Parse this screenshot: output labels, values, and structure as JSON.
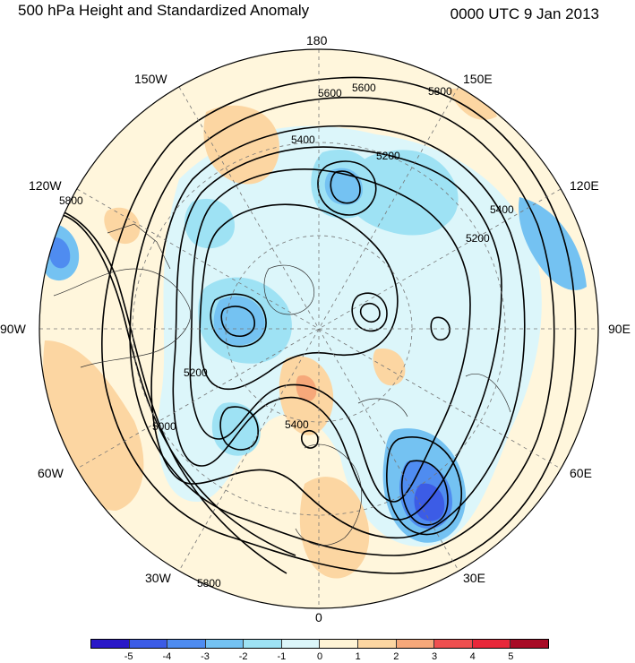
{
  "title": {
    "left": "500 hPa Height and Standardized Anomaly",
    "right": "0000 UTC 9 Jan 2013"
  },
  "longitude_labels": {
    "n180": "180",
    "w150": "150W",
    "e150": "150E",
    "w120": "120W",
    "e120": "120E",
    "w90": "90W",
    "e90": "90E",
    "w60": "60W",
    "e60": "60E",
    "w30": "30W",
    "e30": "30E",
    "s0": "0"
  },
  "contour_labels": {
    "c1": "5600",
    "c2": "5600",
    "c3": "5800",
    "c4": "5400",
    "c5": "5200",
    "c6": "5400",
    "c7": "5200",
    "c8": "5800",
    "c9": "5200",
    "c10": "5400",
    "c11": "5000",
    "c12": "5800"
  },
  "colorbar": {
    "labels": [
      "-5",
      "-4",
      "-3",
      "-2",
      "-1",
      "0",
      "1",
      "2",
      "3",
      "4",
      "5"
    ],
    "colors": [
      "#2a18c8",
      "#3c5ce6",
      "#4f8cf0",
      "#74c2f2",
      "#9ee2f4",
      "#dcf6fa",
      "#fff4d6",
      "#fcd6a2",
      "#f6a87a",
      "#ee5050",
      "#e8283a",
      "#a80c26"
    ]
  }
}
